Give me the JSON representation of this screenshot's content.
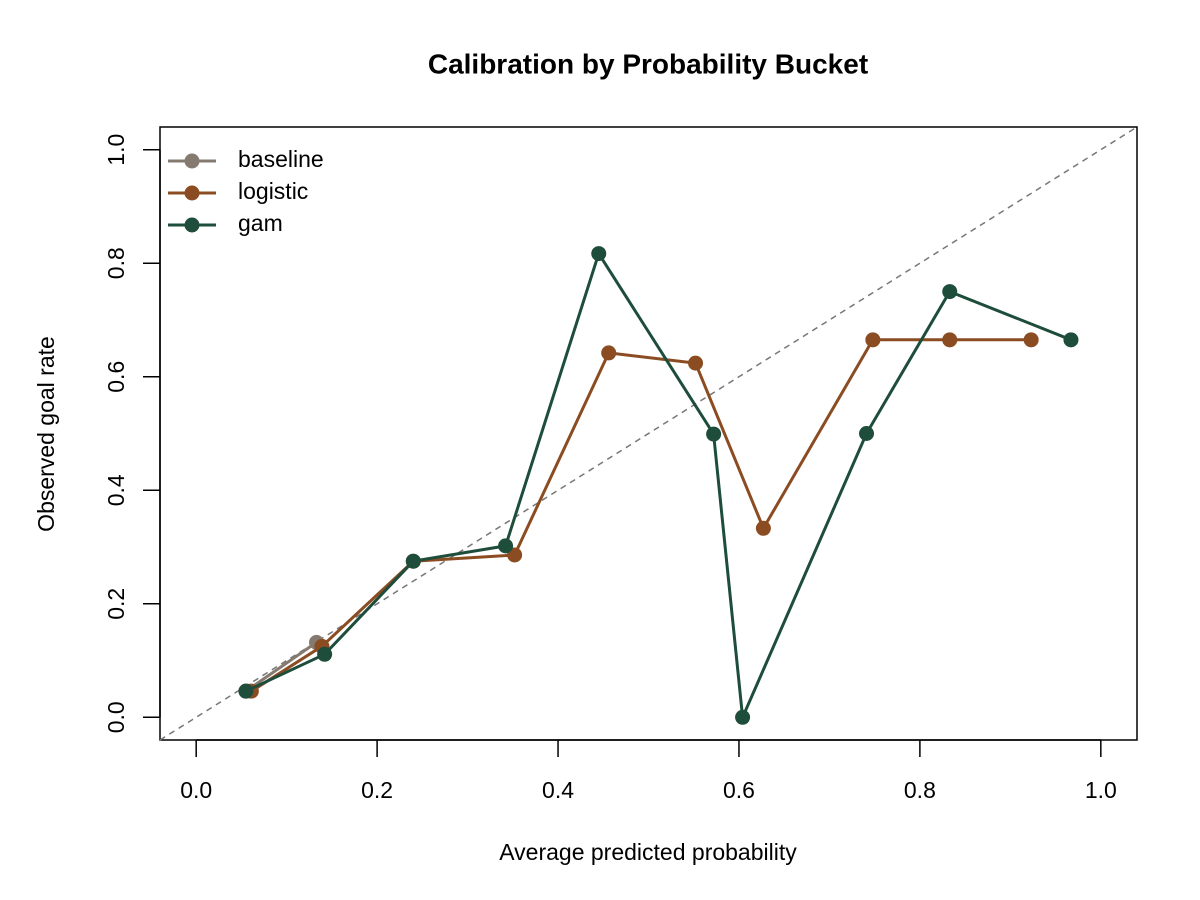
{
  "chart_data": {
    "type": "line",
    "title": "Calibration by Probability Bucket",
    "x_label": "Average predicted probability",
    "y_label": "Observed goal rate",
    "xlim": [
      -0.04,
      1.04
    ],
    "ylim": [
      -0.04,
      1.04
    ],
    "xticks": [
      {
        "value": 0,
        "label": "0.0"
      },
      {
        "value": 0.2,
        "label": "0.2"
      },
      {
        "value": 0.4,
        "label": "0.4"
      },
      {
        "value": 0.6,
        "label": "0.6"
      },
      {
        "value": 0.8,
        "label": "0.8"
      },
      {
        "value": 1,
        "label": "1.0"
      }
    ],
    "yticks": [
      {
        "value": 0,
        "label": "0.0"
      },
      {
        "value": 0.2,
        "label": "0.2"
      },
      {
        "value": 0.4,
        "label": "0.4"
      },
      {
        "value": 0.6,
        "label": "0.6"
      },
      {
        "value": 0.8,
        "label": "0.8"
      },
      {
        "value": 1,
        "label": "1.0"
      }
    ],
    "grid": false,
    "legend_position": "top-left",
    "series": [
      {
        "name": "baseline",
        "color": "#857a70",
        "x": [
          0.055,
          0.133
        ],
        "values": [
          0.046,
          0.132
        ]
      },
      {
        "name": "logistic",
        "color": "#8b4c22",
        "x": [
          0.061,
          0.139,
          0.24,
          0.352,
          0.456,
          0.552,
          0.627,
          0.748,
          0.833,
          0.923
        ],
        "values": [
          0.046,
          0.125,
          0.275,
          0.286,
          0.642,
          0.624,
          0.333,
          0.665,
          0.665,
          0.665
        ]
      },
      {
        "name": "gam",
        "color": "#1e4d3b",
        "x": [
          0.055,
          0.142,
          0.24,
          0.342,
          0.445,
          0.572,
          0.604,
          0.741,
          0.833,
          0.967
        ],
        "values": [
          0.046,
          0.111,
          0.275,
          0.302,
          0.817,
          0.499,
          0.0,
          0.5,
          0.75,
          0.665
        ]
      }
    ]
  }
}
